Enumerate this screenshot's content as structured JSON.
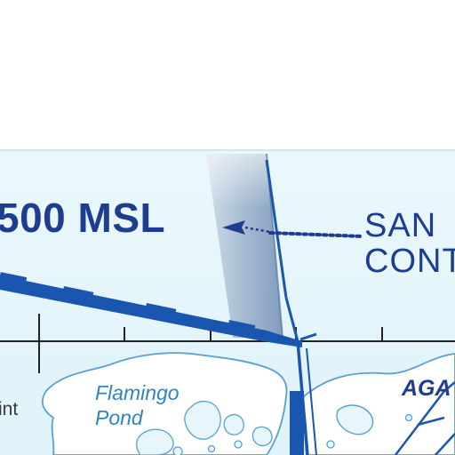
{
  "map": {
    "altitude_label": "500 MSL",
    "airspace_label_line1": "SAN",
    "airspace_label_line2": "CONT",
    "pond_label_line1": "Flamingo",
    "pond_label_line2": "Pond",
    "island_label": "AGA",
    "partial_label": "int"
  },
  "colors": {
    "water": "#e6f6fb",
    "land": "#ffffff",
    "shoreline": "#5a9fd4",
    "airspace_boundary": "#1a56b0",
    "label_blue": "#1f3d8f",
    "pond_label": "#2f84c6",
    "scale_bar": "#222222"
  }
}
